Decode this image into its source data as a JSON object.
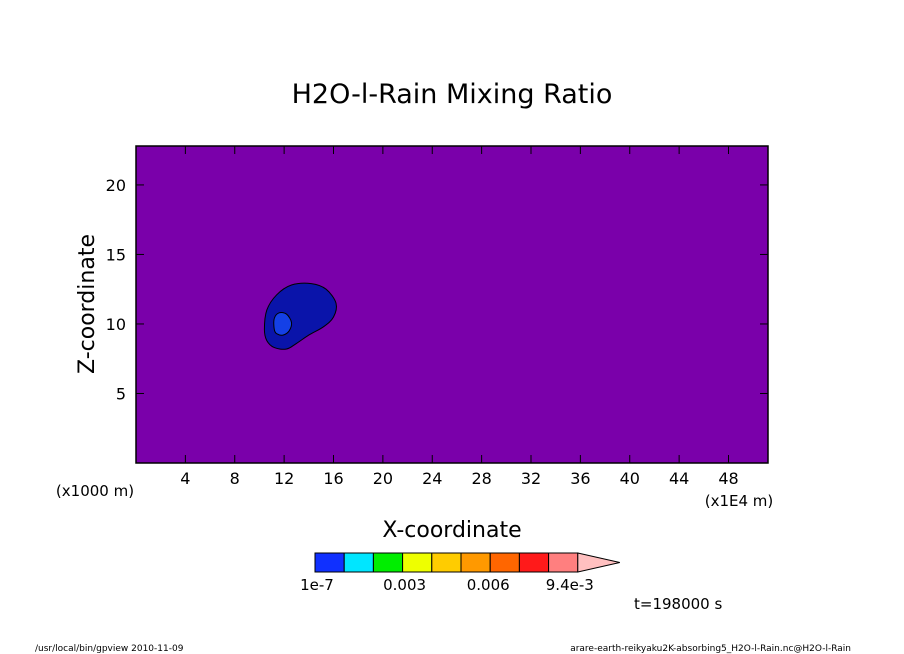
{
  "chart_data": {
    "type": "heatmap",
    "title": "H2O-l-Rain Mixing Ratio",
    "xlabel": "X-coordinate",
    "ylabel": "Z-coordinate",
    "x_unit_note": "(x1E4 m)",
    "y_unit_note": "(x1000 m)",
    "xlim": [
      0,
      51.2
    ],
    "ylim": [
      0,
      22.8
    ],
    "x_ticks": [
      4,
      8,
      12,
      16,
      20,
      24,
      28,
      32,
      36,
      40,
      44,
      48
    ],
    "y_ticks": [
      5,
      10,
      15,
      20
    ],
    "background_level": "below 1e-7",
    "background_color": "#7a00aa",
    "contours": [
      {
        "level": "1e-7",
        "color": "#0a14aa",
        "points": [
          [
            10.4,
            9.6
          ],
          [
            10.6,
            11.0
          ],
          [
            11.4,
            12.1
          ],
          [
            12.6,
            12.8
          ],
          [
            14.2,
            12.9
          ],
          [
            15.4,
            12.5
          ],
          [
            16.2,
            11.5
          ],
          [
            16.0,
            10.5
          ],
          [
            15.2,
            9.8
          ],
          [
            14.0,
            9.2
          ],
          [
            13.0,
            8.6
          ],
          [
            12.2,
            8.2
          ],
          [
            11.2,
            8.3
          ],
          [
            10.6,
            8.8
          ]
        ]
      },
      {
        "level": "3e-4",
        "color": "#1440e6",
        "points": [
          [
            11.2,
            9.6
          ],
          [
            11.2,
            10.4
          ],
          [
            11.6,
            10.8
          ],
          [
            12.2,
            10.7
          ],
          [
            12.6,
            10.1
          ],
          [
            12.4,
            9.5
          ],
          [
            11.9,
            9.2
          ],
          [
            11.4,
            9.3
          ]
        ]
      }
    ],
    "colorbar": {
      "colors": [
        "#1030ff",
        "#00e6ff",
        "#00ee00",
        "#eeff00",
        "#ffcc00",
        "#ff9900",
        "#ff6600",
        "#ff1a1a",
        "#ff7f7f",
        "#ffc0c0"
      ],
      "labels": [
        "1e-7",
        "0.003",
        "0.006",
        "9.4e-3"
      ]
    },
    "time_label": "t=198000 s"
  },
  "footer": {
    "left": "/usr/local/bin/gpview  2010-11-09",
    "right": "arare-earth-reikyaku2K-absorbing5_H2O-l-Rain.nc@H2O-l-Rain"
  }
}
